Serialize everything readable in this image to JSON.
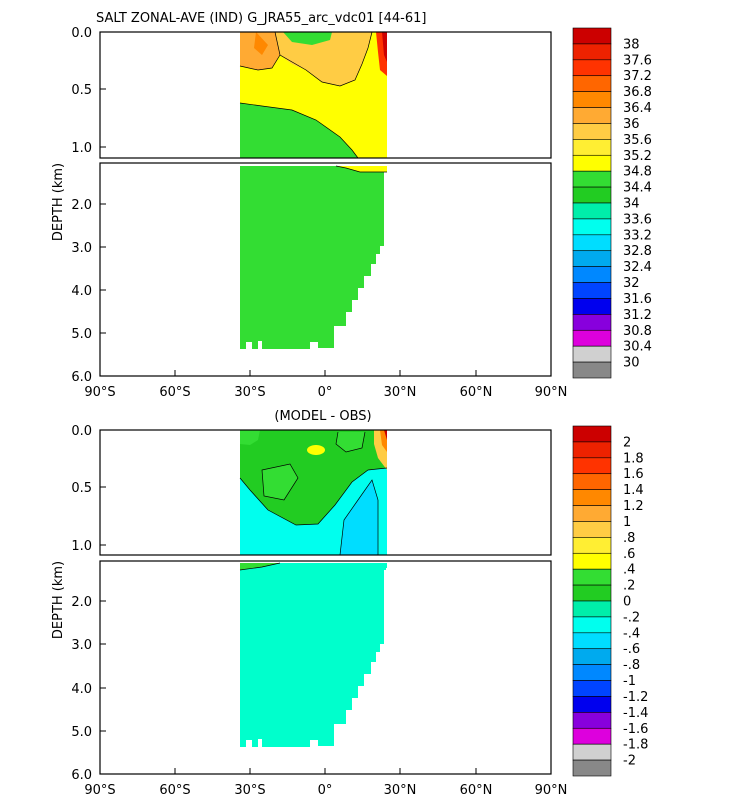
{
  "chart_data": [
    {
      "type": "heatmap",
      "title": "SALT ZONAL-AVE (IND) G_JRA55_arc_vdc01 [44-61]",
      "ylabel": "DEPTH (km)",
      "xlabel": "",
      "x_range": [
        -90,
        90
      ],
      "x_ticks": [
        "90°S",
        "60°S",
        "30°S",
        "0°",
        "30°N",
        "60°N",
        "90°N"
      ],
      "upper_y_ticks": [
        "0.0",
        "0.5",
        "1.0"
      ],
      "lower_y_ticks": [
        "2.0",
        "3.0",
        "4.0",
        "5.0",
        "6.0"
      ],
      "upper_depth_range_km": [
        0,
        1.1
      ],
      "lower_depth_range_km": [
        1.1,
        6.0
      ],
      "data_lat_range": [
        -34,
        25
      ],
      "colorbar": {
        "levels": [
          "38",
          "37.6",
          "37.2",
          "36.8",
          "36.4",
          "36",
          "35.6",
          "35.2",
          "34.8",
          "34.4",
          "34",
          "33.6",
          "33.2",
          "32.8",
          "32.4",
          "32",
          "31.6",
          "31.2",
          "30.8",
          "30.4",
          "30"
        ],
        "colors": [
          "#cc0000",
          "#ee2200",
          "#ff3300",
          "#ff6600",
          "#ff8800",
          "#ffaa33",
          "#ffcc44",
          "#ffee33",
          "#ffff00",
          "#33dd33",
          "#22cc22",
          "#00eeaa",
          "#00ffee",
          "#00ddff",
          "#00aaee",
          "#0088ff",
          "#0044ff",
          "#0000ee",
          "#8800dd",
          "#dd00dd",
          "#d0d0d0",
          "#888888"
        ]
      }
    },
    {
      "type": "heatmap",
      "title": "(MODEL - OBS)",
      "ylabel": "DEPTH (km)",
      "xlabel": "",
      "x_range": [
        -90,
        90
      ],
      "x_ticks": [
        "90°S",
        "60°S",
        "30°S",
        "0°",
        "30°N",
        "60°N",
        "90°N"
      ],
      "upper_y_ticks": [
        "0.0",
        "0.5",
        "1.0"
      ],
      "lower_y_ticks": [
        "2.0",
        "3.0",
        "4.0",
        "5.0",
        "6.0"
      ],
      "upper_depth_range_km": [
        0,
        1.1
      ],
      "lower_depth_range_km": [
        1.1,
        6.0
      ],
      "data_lat_range": [
        -34,
        25
      ],
      "colorbar": {
        "levels": [
          "2",
          "1.8",
          "1.6",
          "1.4",
          "1.2",
          "1",
          ".8",
          ".6",
          ".4",
          ".2",
          "0",
          "-.2",
          "-.4",
          "-.6",
          "-.8",
          "-1",
          "-1.2",
          "-1.4",
          "-1.6",
          "-1.8",
          "-2"
        ],
        "colors": [
          "#cc0000",
          "#ee2200",
          "#ff3300",
          "#ff6600",
          "#ff8800",
          "#ffaa33",
          "#ffcc44",
          "#ffee33",
          "#ffff00",
          "#33dd33",
          "#22cc22",
          "#00eeaa",
          "#00ffee",
          "#00ddff",
          "#00aaee",
          "#0088ff",
          "#0044ff",
          "#0000ee",
          "#8800dd",
          "#dd00dd",
          "#d0d0d0",
          "#888888"
        ]
      }
    }
  ]
}
